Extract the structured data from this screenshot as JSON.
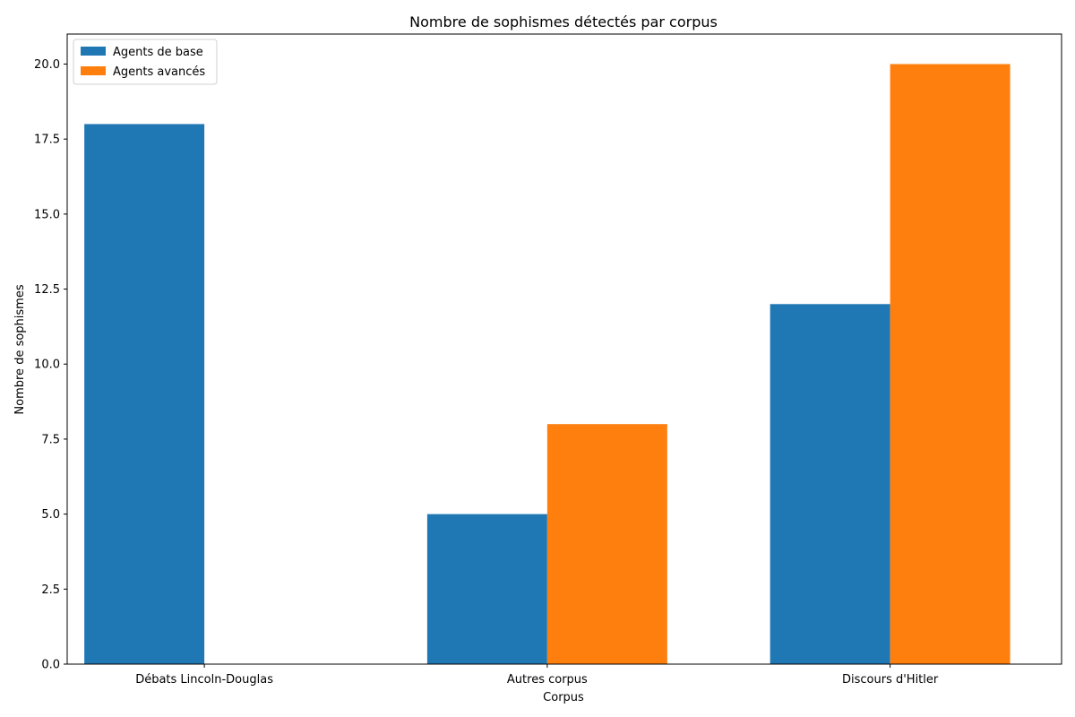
{
  "chart_data": {
    "type": "bar",
    "title": "Nombre de sophismes détectés par corpus",
    "xlabel": "Corpus",
    "ylabel": "Nombre de sophismes",
    "categories": [
      "Débats Lincoln-Douglas",
      "Autres corpus",
      "Discours d'Hitler"
    ],
    "series": [
      {
        "name": "Agents de base",
        "values": [
          18,
          5,
          12
        ],
        "color": "#1f77b4"
      },
      {
        "name": "Agents avancés",
        "values": [
          0,
          8,
          20
        ],
        "color": "#ff7f0e"
      }
    ],
    "ylim": [
      0,
      21
    ],
    "yticks": [
      "0.0",
      "2.5",
      "5.0",
      "7.5",
      "10.0",
      "12.5",
      "15.0",
      "17.5",
      "20.0"
    ],
    "grid": false,
    "legend_position": "top-left"
  }
}
